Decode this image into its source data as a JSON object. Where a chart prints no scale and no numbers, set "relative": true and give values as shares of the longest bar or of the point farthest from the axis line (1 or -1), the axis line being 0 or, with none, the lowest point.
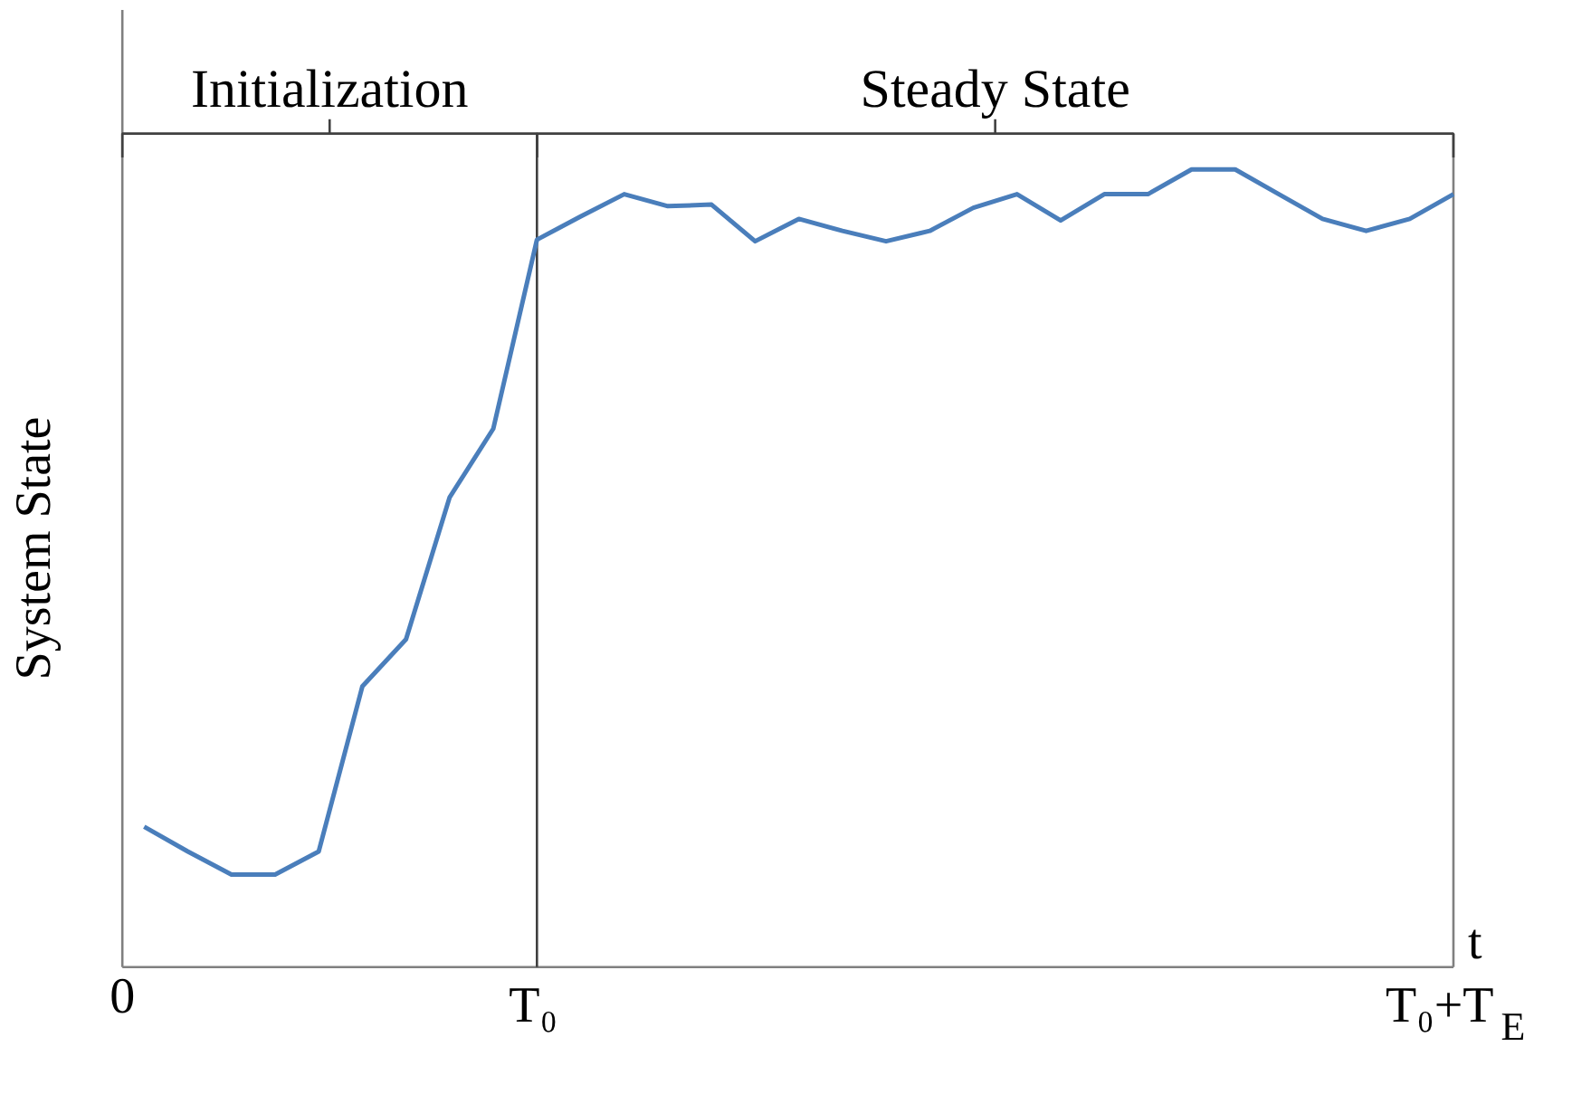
{
  "chart_data": {
    "type": "line",
    "relative": true,
    "ylabel": "System State",
    "xlabel": "t",
    "color": "#4a7ebb",
    "categories": [
      null,
      null,
      null,
      null,
      null,
      null,
      null,
      null,
      null,
      "T₀",
      null,
      null,
      null,
      null,
      null,
      null,
      null,
      null,
      null,
      null,
      null,
      null,
      null,
      null,
      null,
      null,
      null,
      null,
      null,
      null,
      "T₀+T$_{E}$"
    ],
    "values": [
      0.176,
      0.145,
      0.116,
      0.116,
      0.145,
      0.352,
      0.411,
      0.589,
      0.675,
      0.912,
      0.941,
      0.969,
      0.954,
      0.956,
      0.91,
      0.938,
      0.923,
      0.91,
      0.923,
      0.952,
      0.969,
      0.936,
      0.969,
      0.969,
      1,
      1,
      0.969,
      0.938,
      0.923,
      0.938,
      0.969
    ],
    "ref_lines": [
      {
        "axis": "x",
        "value": "T₀"
      }
    ],
    "annotations": [
      "0",
      "Initialization",
      "Steady State"
    ],
    "grid": false,
    "marker": "none",
    "line_style": "solid"
  }
}
